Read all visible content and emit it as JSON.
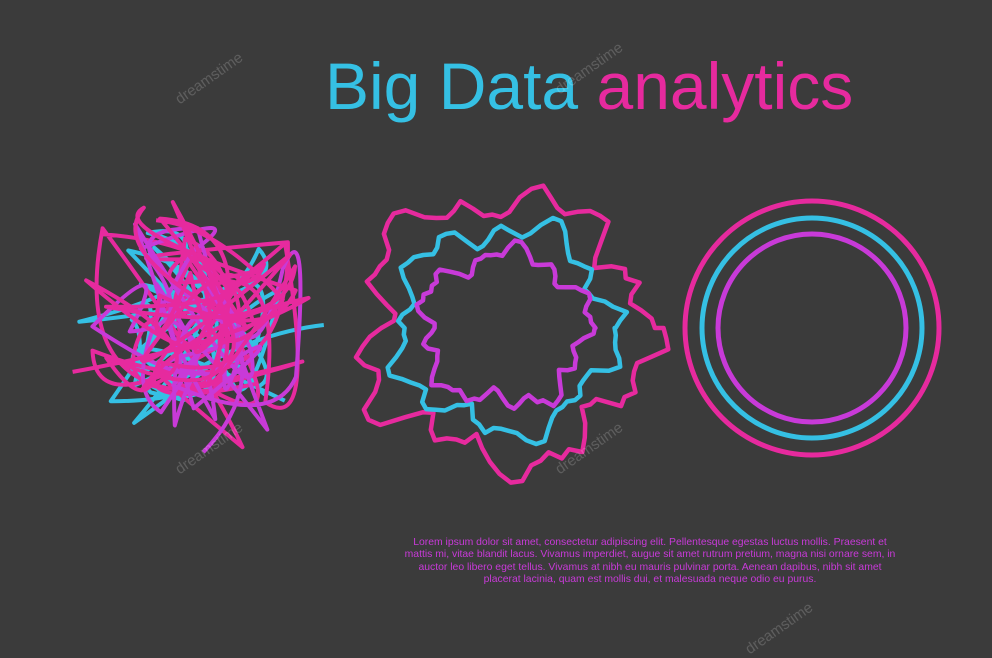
{
  "title": {
    "part1": "Big Data",
    "part2": "analytics"
  },
  "body_lines": [
    "Lorem ipsum dolor sit amet, consectetur adipiscing elit. Pellentesque egestas luctus mollis. Praesent et",
    "mattis mi, vitae blandit lacus. Vivamus imperdiet, augue sit amet rutrum pretium, magna nisi ornare sem, in",
    "auctor leo libero eget tellus. Vivamus at nibh eu mauris pulvinar porta. Aenean dapibus, nibh sit amet",
    "placerat lacinia, quam est mollis dui, et malesuada neque odio eu purus."
  ],
  "watermark": "dreamstime",
  "colors": {
    "background": "#3b3b3b",
    "cyan": "#35c0e4",
    "pink": "#e62a9e",
    "magenta": "#c83ad8"
  },
  "illustrations": [
    "tangled-scribble",
    "wavy-rings",
    "concentric-circles"
  ]
}
